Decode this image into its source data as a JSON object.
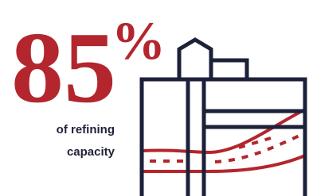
{
  "stat": {
    "number": "85",
    "unit": "%",
    "caption_lines": [
      "of refining",
      "capacity"
    ]
  }
}
